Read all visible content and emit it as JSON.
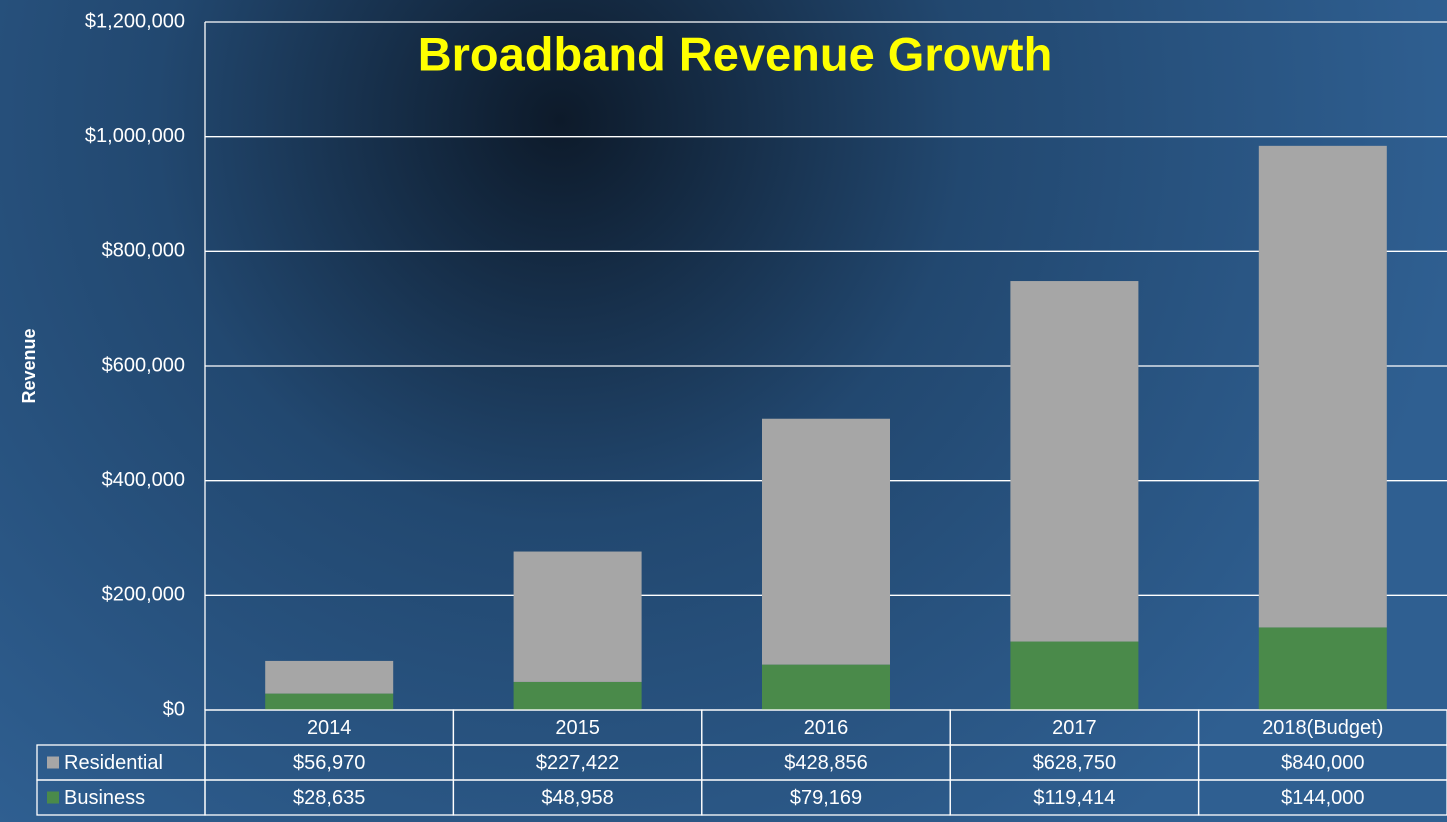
{
  "chart_data": {
    "type": "stacked_bar",
    "title": "Broadband Revenue Growth",
    "y_axis_label": "Revenue",
    "categories": [
      "2014",
      "2015",
      "2016",
      "2017",
      "2018(Budget)"
    ],
    "series": [
      {
        "name": "Residential",
        "color": "#a6a6a6",
        "values": [
          56970,
          227422,
          428856,
          628750,
          840000
        ],
        "value_labels": [
          "$56,970",
          "$227,422",
          "$428,856",
          "$628,750",
          "$840,000"
        ]
      },
      {
        "name": "Business",
        "color": "#4a8a4a",
        "values": [
          28635,
          48958,
          79169,
          119414,
          144000
        ],
        "value_labels": [
          "$28,635",
          "$48,958",
          "$79,169",
          "$119,414",
          "$144,000"
        ]
      }
    ],
    "ylim": [
      0,
      1200000
    ],
    "yticks": [
      {
        "value": 0,
        "label": "$0"
      },
      {
        "value": 200000,
        "label": "$200,000"
      },
      {
        "value": 400000,
        "label": "$400,000"
      },
      {
        "value": 600000,
        "label": "$600,000"
      },
      {
        "value": 800000,
        "label": "$800,000"
      },
      {
        "value": 1000000,
        "label": "$1,000,000"
      },
      {
        "value": 1200000,
        "label": "$1,200,000"
      }
    ],
    "grid": true
  }
}
